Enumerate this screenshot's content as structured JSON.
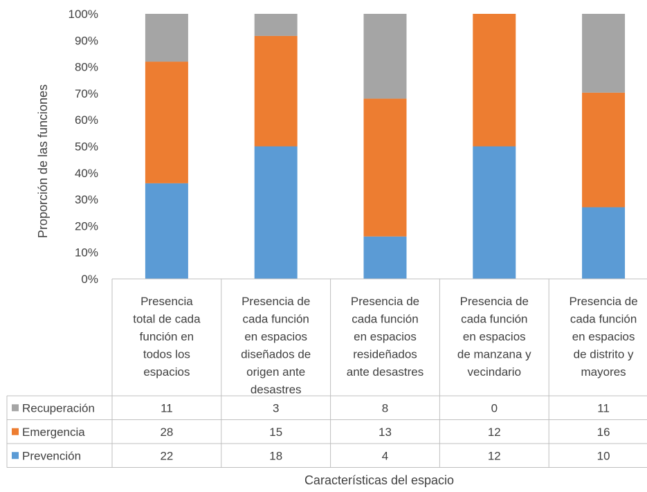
{
  "chart_data": {
    "type": "bar",
    "stacked": "percent",
    "ylabel": "Proporción de las funciones",
    "xlabel": "Características del espacio",
    "y_ticks": [
      "0%",
      "10%",
      "20%",
      "30%",
      "40%",
      "50%",
      "60%",
      "70%",
      "80%",
      "90%",
      "100%"
    ],
    "ylim": [
      0,
      100
    ],
    "grid": false,
    "legend_placement": "data-table",
    "categories": [
      [
        "Presencia",
        "total de cada",
        "función en",
        "todos los",
        "espacios"
      ],
      [
        "Presencia de",
        "cada función",
        "en espacios",
        "diseñados de",
        "origen ante",
        "desastres"
      ],
      [
        "Presencia de",
        "cada función",
        "en espacios",
        "resideñados",
        "ante desastres"
      ],
      [
        "Presencia de",
        "cada función",
        "en espacios",
        "de manzana y",
        "vecindario"
      ],
      [
        "Presencia de",
        "cada función",
        "en espacios",
        "de distrito y",
        "mayores"
      ]
    ],
    "series": [
      {
        "name": "Prevención",
        "color": "#5B9BD5",
        "values": [
          22,
          18,
          4,
          12,
          10
        ]
      },
      {
        "name": "Emergencia",
        "color": "#ED7D31",
        "values": [
          28,
          15,
          13,
          12,
          16
        ]
      },
      {
        "name": "Recuperación",
        "color": "#A5A5A5",
        "values": [
          11,
          3,
          8,
          0,
          11
        ]
      }
    ],
    "table_row_order": [
      "Recuperación",
      "Emergencia",
      "Prevención"
    ]
  }
}
